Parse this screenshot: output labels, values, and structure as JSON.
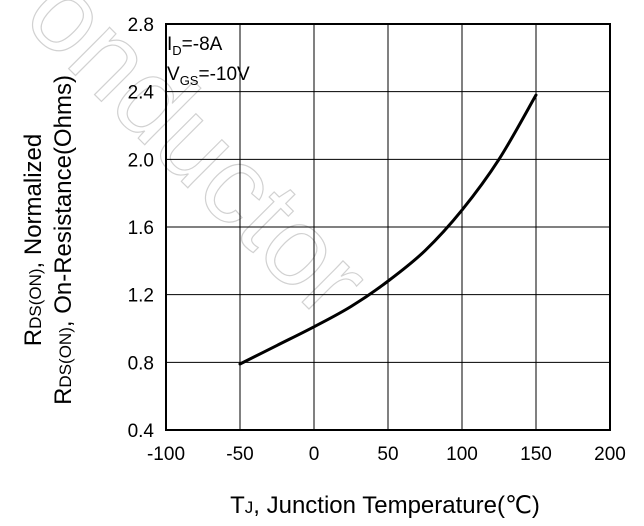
{
  "chart_data": {
    "type": "line",
    "title": "",
    "xlabel": {
      "main": "T",
      "sub": "J",
      "rest": ", Junction Temperature(℃)"
    },
    "ylabel": {
      "line1_main": "R",
      "line1_sub": "DS(ON)",
      "line1_rest": ", Normalized",
      "line2_main": "R",
      "line2_sub": "DS(ON)",
      "line2_rest": ", On-Resistance(Ohms)"
    },
    "xlim": [
      -100,
      200
    ],
    "ylim": [
      0.4,
      2.8
    ],
    "x_ticks": [
      -100,
      -50,
      0,
      50,
      100,
      150,
      200
    ],
    "x_tick_labels": [
      "-100",
      "-50",
      "0",
      "50",
      "100",
      "150",
      "200"
    ],
    "y_ticks": [
      0.4,
      0.8,
      1.2,
      1.6,
      2.0,
      2.4,
      2.8
    ],
    "y_tick_labels": [
      "0.4",
      "0.8",
      "1.2",
      "1.6",
      "2.0",
      "2.4",
      "2.8"
    ],
    "grid": true,
    "annotations": [
      {
        "main": "I",
        "sub": "D",
        "rest": "=-8A"
      },
      {
        "main": "V",
        "sub": "GS",
        "rest": "=-10V"
      }
    ],
    "series": [
      {
        "color": "#000000",
        "x": [
          -50,
          -25,
          0,
          25,
          50,
          75,
          100,
          125,
          150
        ],
        "y": [
          0.79,
          0.9,
          1.01,
          1.13,
          1.28,
          1.46,
          1.7,
          2.0,
          2.38
        ]
      }
    ]
  },
  "watermark": "onductor"
}
